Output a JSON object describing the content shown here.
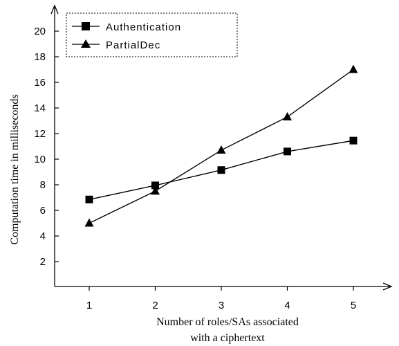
{
  "chart_data": {
    "type": "line",
    "xlabel_line1": "Number of roles/SAs associated",
    "xlabel_line2": "with a ciphertext",
    "ylabel": "Computation time in milliseconds",
    "x": [
      1,
      2,
      3,
      4,
      5
    ],
    "x_ticks": [
      "1",
      "2",
      "3",
      "4",
      "5"
    ],
    "y_ticks": [
      "2",
      "4",
      "6",
      "8",
      "10",
      "12",
      "14",
      "16",
      "18",
      "20"
    ],
    "ylim": [
      0,
      20
    ],
    "grid": false,
    "legend_position": "top-left",
    "series": [
      {
        "name": "Authentication",
        "marker": "square",
        "values": [
          6.85,
          7.95,
          9.15,
          10.6,
          11.45
        ],
        "color": "#000000"
      },
      {
        "name": "PartialDec",
        "marker": "triangle",
        "values": [
          5.0,
          7.5,
          10.7,
          13.3,
          17.0
        ],
        "color": "#000000"
      }
    ]
  }
}
